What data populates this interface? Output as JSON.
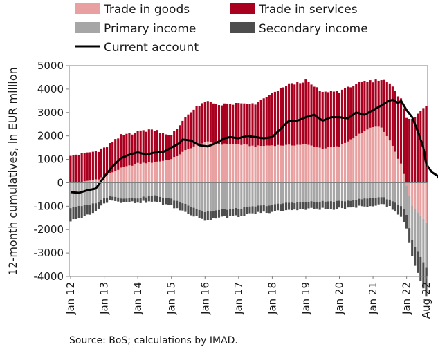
{
  "chart_data": {
    "type": "bar",
    "stacked": true,
    "ylabel": "12-month cumulatives, in EUR million",
    "source": "Source: BoS; calculations by IMAD.",
    "ylim": [
      -4000,
      5000
    ],
    "yticks": [
      5000,
      4000,
      3000,
      2000,
      1000,
      0,
      -1000,
      -2000,
      -3000,
      -4000
    ],
    "tick_labels": [
      "Jan 12",
      "Jan 13",
      "Jan 14",
      "Jan 15",
      "Jan 16",
      "Jan 17",
      "Jan 18",
      "Jan 19",
      "Jan 20",
      "Jan 21",
      "Jan 22",
      "Aug 22"
    ],
    "grid": false,
    "legend_position": "top",
    "colors": {
      "goods": "#e8a0a0",
      "services": "#a8001e",
      "primary": "#a6a6a6",
      "secondary": "#4d4d4d",
      "current": "#000000"
    },
    "anchors": {
      "goods": [
        [
          0,
          0
        ],
        [
          4,
          20
        ],
        [
          10,
          170
        ],
        [
          14,
          400
        ],
        [
          18,
          620
        ],
        [
          24,
          820
        ],
        [
          30,
          880
        ],
        [
          36,
          1000
        ],
        [
          42,
          1450
        ],
        [
          48,
          1750
        ],
        [
          54,
          1650
        ],
        [
          60,
          1640
        ],
        [
          66,
          1560
        ],
        [
          72,
          1600
        ],
        [
          78,
          1600
        ],
        [
          84,
          1640
        ],
        [
          90,
          1470
        ],
        [
          96,
          1550
        ],
        [
          102,
          2000
        ],
        [
          108,
          2400
        ],
        [
          111,
          2350
        ],
        [
          114,
          1800
        ],
        [
          118,
          800
        ],
        [
          122,
          -1000
        ],
        [
          127,
          -1700
        ]
      ],
      "services": [
        [
          0,
          1200
        ],
        [
          6,
          1200
        ],
        [
          12,
          1180
        ],
        [
          18,
          1380
        ],
        [
          24,
          1370
        ],
        [
          30,
          1400
        ],
        [
          36,
          1000
        ],
        [
          42,
          1500
        ],
        [
          48,
          1700
        ],
        [
          54,
          1690
        ],
        [
          60,
          1720
        ],
        [
          66,
          1800
        ],
        [
          72,
          2200
        ],
        [
          78,
          2600
        ],
        [
          84,
          2700
        ],
        [
          90,
          2400
        ],
        [
          96,
          2350
        ],
        [
          102,
          2230
        ],
        [
          108,
          1930
        ],
        [
          111,
          2050
        ],
        [
          114,
          2450
        ],
        [
          118,
          2800
        ],
        [
          122,
          2700
        ],
        [
          127,
          3300
        ]
      ],
      "primary": [
        [
          0,
          -1050
        ],
        [
          4,
          -1000
        ],
        [
          8,
          -900
        ],
        [
          10,
          -800
        ],
        [
          14,
          -550
        ],
        [
          18,
          -650
        ],
        [
          24,
          -650
        ],
        [
          30,
          -550
        ],
        [
          36,
          -700
        ],
        [
          42,
          -950
        ],
        [
          48,
          -1250
        ],
        [
          54,
          -1150
        ],
        [
          60,
          -1100
        ],
        [
          66,
          -1000
        ],
        [
          72,
          -950
        ],
        [
          78,
          -850
        ],
        [
          84,
          -820
        ],
        [
          90,
          -800
        ],
        [
          96,
          -800
        ],
        [
          102,
          -720
        ],
        [
          108,
          -650
        ],
        [
          111,
          -600
        ],
        [
          114,
          -720
        ],
        [
          118,
          -1000
        ],
        [
          122,
          -1500
        ],
        [
          127,
          -1950
        ]
      ],
      "secondary": [
        [
          0,
          -550
        ],
        [
          6,
          -450
        ],
        [
          10,
          -300
        ],
        [
          14,
          -150
        ],
        [
          18,
          -180
        ],
        [
          24,
          -200
        ],
        [
          30,
          -250
        ],
        [
          36,
          -300
        ],
        [
          42,
          -350
        ],
        [
          48,
          -350
        ],
        [
          54,
          -300
        ],
        [
          60,
          -350
        ],
        [
          66,
          -300
        ],
        [
          72,
          -300
        ],
        [
          78,
          -300
        ],
        [
          84,
          -300
        ],
        [
          90,
          -320
        ],
        [
          96,
          -300
        ],
        [
          102,
          -300
        ],
        [
          108,
          -350
        ],
        [
          114,
          -300
        ],
        [
          118,
          -450
        ],
        [
          122,
          -700
        ],
        [
          127,
          -1200
        ]
      ],
      "current": [
        [
          0,
          -400
        ],
        [
          3,
          -430
        ],
        [
          6,
          -320
        ],
        [
          9,
          -250
        ],
        [
          12,
          250
        ],
        [
          15,
          700
        ],
        [
          18,
          1050
        ],
        [
          21,
          1200
        ],
        [
          24,
          1300
        ],
        [
          27,
          1200
        ],
        [
          30,
          1290
        ],
        [
          33,
          1310
        ],
        [
          36,
          1500
        ],
        [
          39,
          1700
        ],
        [
          40,
          1850
        ],
        [
          43,
          1800
        ],
        [
          46,
          1600
        ],
        [
          49,
          1550
        ],
        [
          52,
          1700
        ],
        [
          55,
          1900
        ],
        [
          57,
          1950
        ],
        [
          60,
          1900
        ],
        [
          63,
          2000
        ],
        [
          66,
          1950
        ],
        [
          69,
          1900
        ],
        [
          72,
          1950
        ],
        [
          75,
          2300
        ],
        [
          78,
          2650
        ],
        [
          81,
          2650
        ],
        [
          84,
          2800
        ],
        [
          87,
          2900
        ],
        [
          90,
          2650
        ],
        [
          93,
          2800
        ],
        [
          96,
          2800
        ],
        [
          99,
          2750
        ],
        [
          102,
          3000
        ],
        [
          105,
          2900
        ],
        [
          108,
          3100
        ],
        [
          111,
          3300
        ],
        [
          113,
          3450
        ],
        [
          115,
          3550
        ],
        [
          117,
          3400
        ],
        [
          118,
          3500
        ],
        [
          120,
          3100
        ],
        [
          122,
          2800
        ],
        [
          124,
          2200
        ],
        [
          126,
          1500
        ],
        [
          127,
          800
        ],
        [
          129,
          450
        ],
        [
          131,
          300
        ],
        [
          132,
          100
        ]
      ]
    }
  },
  "legend": {
    "goods": "Trade in goods",
    "services": "Trade in services",
    "primary": "Primary income",
    "secondary": "Secondary income",
    "current": "Current account"
  }
}
